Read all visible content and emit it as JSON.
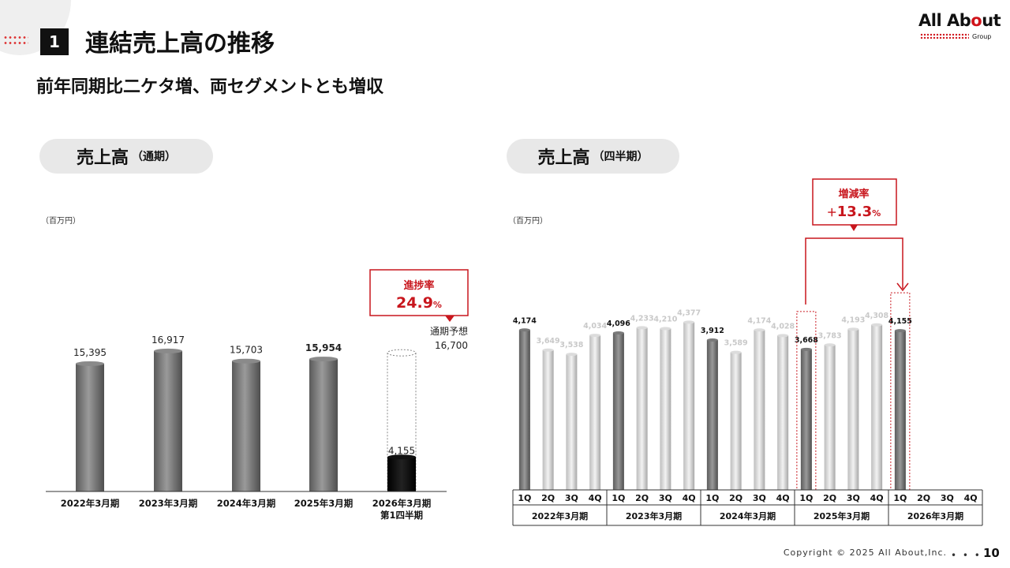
{
  "header": {
    "section_number": "1",
    "title": "連結売上高の推移",
    "subtitle": "前年同期比二ケタ増、両セグメントとも増収"
  },
  "logo": {
    "line1_a": "All Ab",
    "line1_o": "o",
    "line1_b": "ut",
    "line2": "Group"
  },
  "annual": {
    "pill_main": "売上高",
    "pill_sub": "（通期）",
    "unit": "（百万円）",
    "progress_box": {
      "label": "進捗率",
      "value": "24.9",
      "suffix": "%"
    },
    "forecast_label": "通期予想",
    "forecast_value_label": "16,700"
  },
  "quarterly": {
    "pill_main": "売上高",
    "pill_sub": "（四半期）",
    "unit": "（百万円）",
    "change_box": {
      "label": "増減率",
      "prefix": "＋",
      "value": "13.3",
      "suffix": "%"
    }
  },
  "chart_data": [
    {
      "type": "bar",
      "categories": [
        "2022年3月期",
        "2023年3月期",
        "2024年3月期",
        "2025年3月期",
        "2026年3月期\n第1四半期"
      ],
      "values": [
        15395,
        16917,
        15703,
        15954,
        4155
      ],
      "value_labels": [
        "15,395",
        "16,917",
        "15,703",
        "15,954",
        "4,155"
      ],
      "forecast": 16700,
      "ylim": [
        0,
        19000
      ],
      "grid": false,
      "legend": "none"
    },
    {
      "type": "bar",
      "groups": [
        "2022年3月期",
        "2023年3月期",
        "2024年3月期",
        "2025年3月期",
        "2026年3月期"
      ],
      "quarters": [
        "1Q",
        "2Q",
        "3Q",
        "4Q"
      ],
      "values": [
        4174,
        3649,
        3538,
        4034,
        4096,
        4233,
        4210,
        4377,
        3912,
        3589,
        4174,
        4028,
        3668,
        3783,
        4193,
        4308,
        4155,
        null,
        null,
        null
      ],
      "value_labels": [
        "4,174",
        "3,649",
        "3,538",
        "4,034",
        "4,096",
        "4,233",
        "4,210",
        "4,377",
        "3,912",
        "3,589",
        "4,174",
        "4,028",
        "3,668",
        "3,783",
        "4,193",
        "4,308",
        "4,155",
        "",
        "",
        ""
      ],
      "ylim": [
        0,
        4900
      ],
      "grid": false,
      "legend": "none"
    }
  ],
  "footer": {
    "copyright": "Copyright © 2025 All About,Inc.",
    "dots": "• • •",
    "page": "10"
  }
}
